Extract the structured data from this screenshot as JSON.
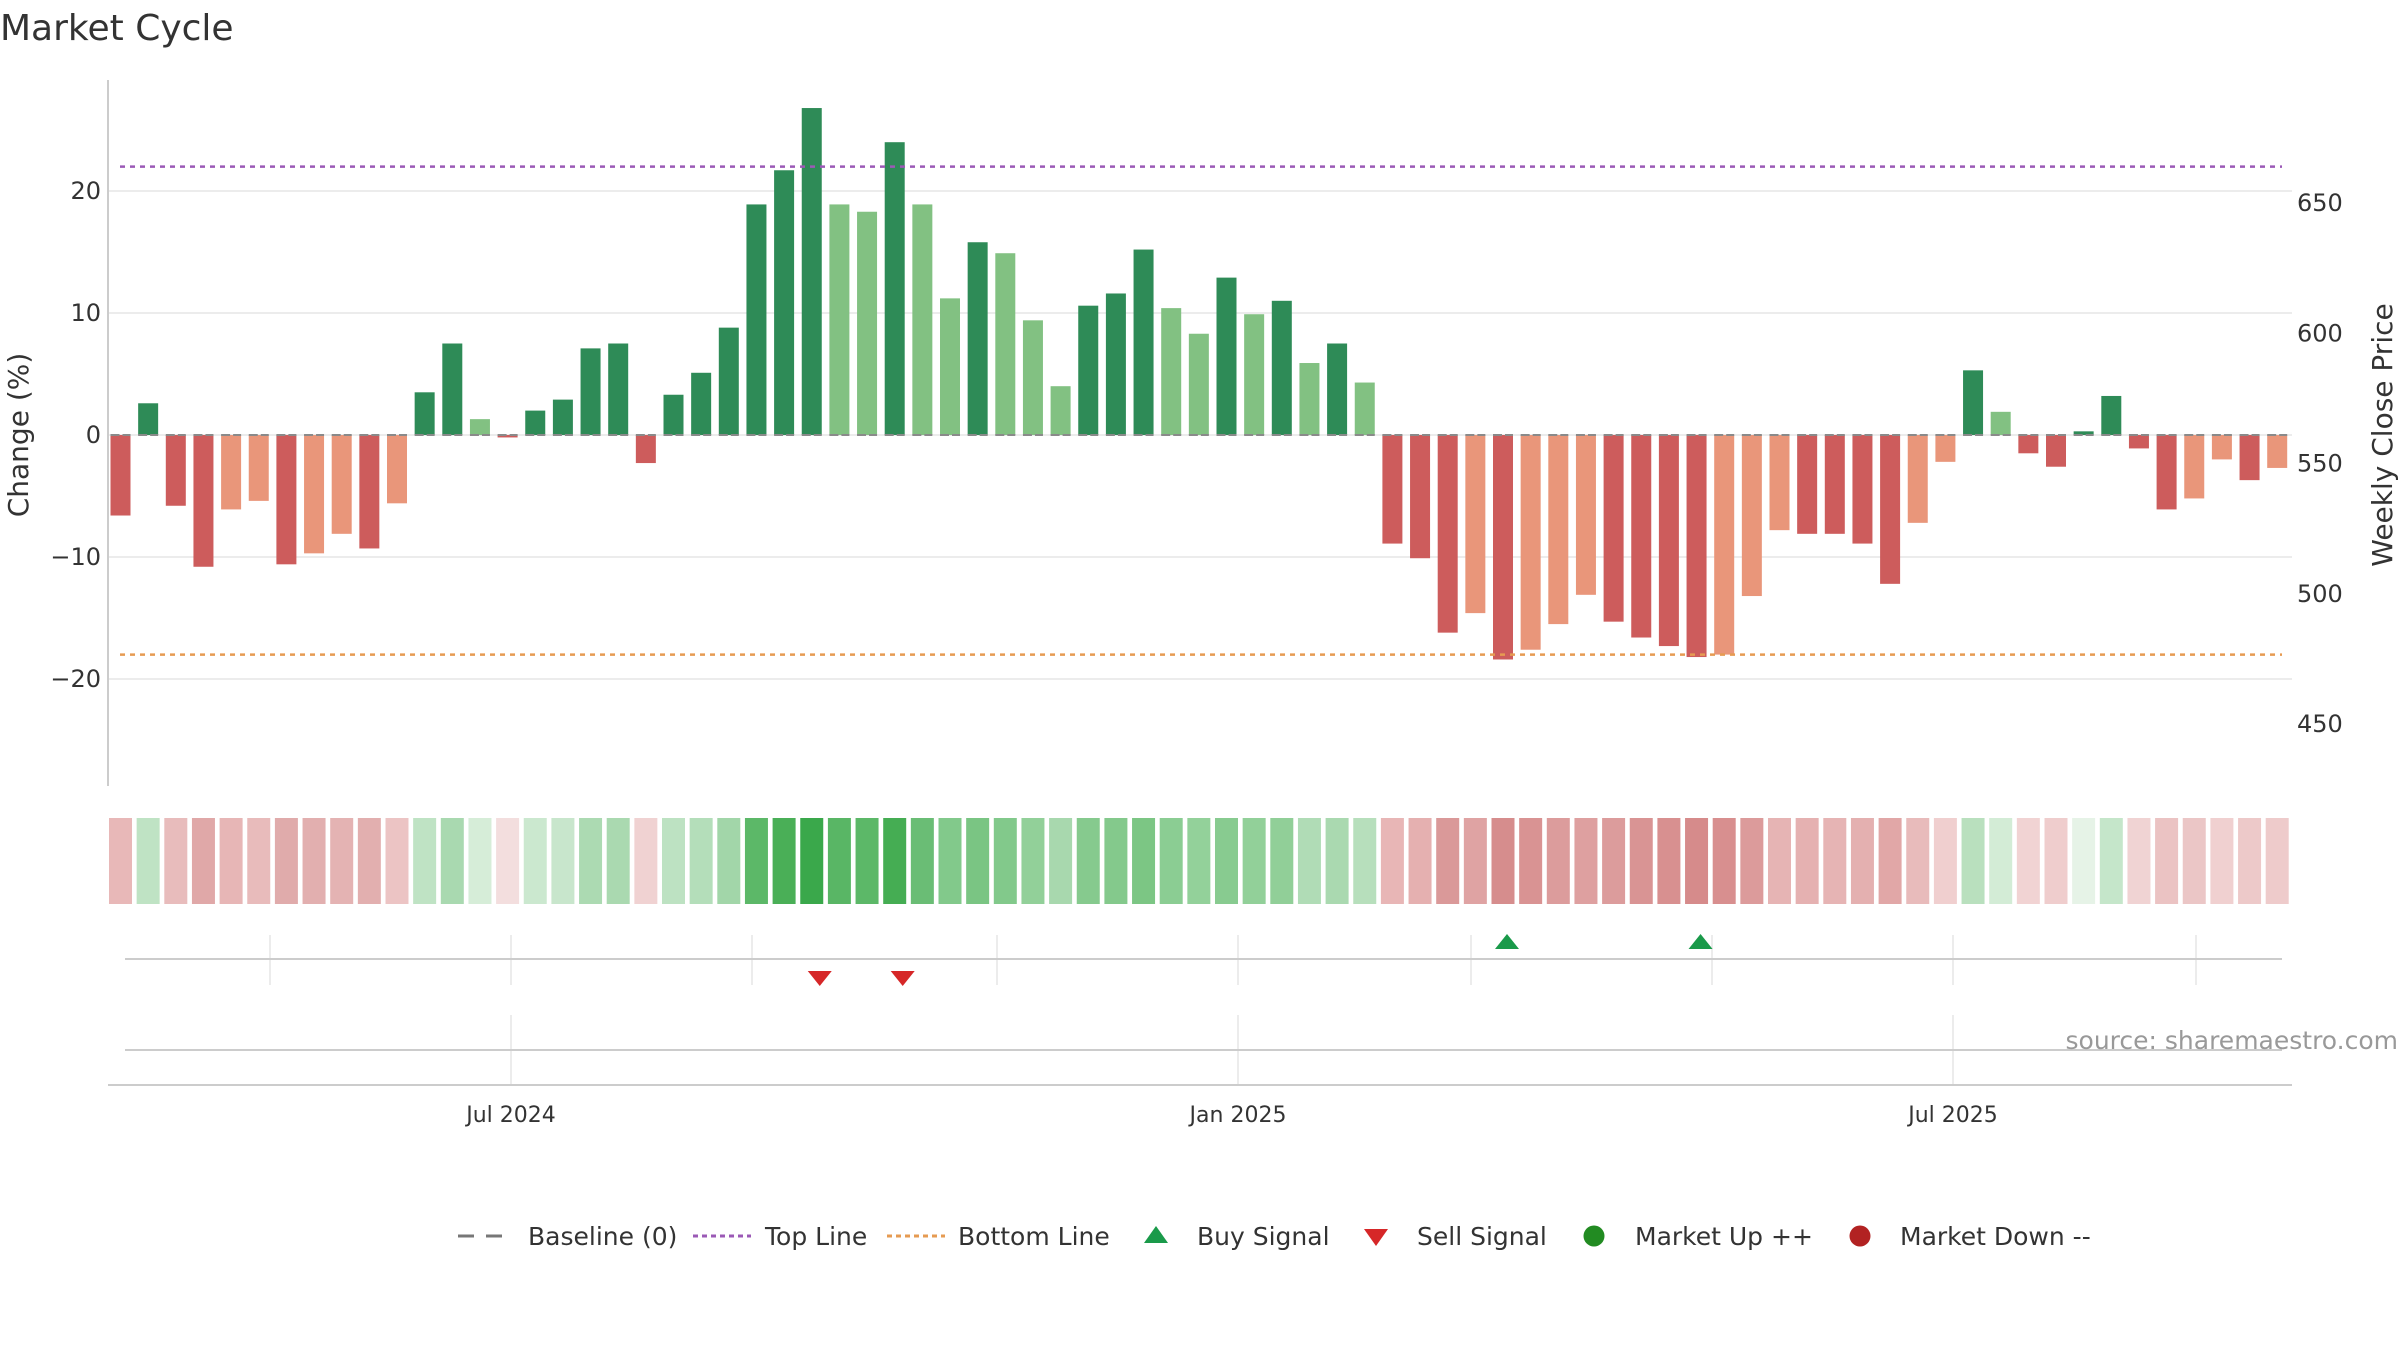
{
  "chart_data": {
    "type": "bar",
    "title": "Market Cycle",
    "y_left_label": "Change (%)",
    "y_right_label": "Weekly Close Price",
    "y_left_ticks": [
      20,
      10,
      0,
      -10,
      -20
    ],
    "y_left_tick_labels": [
      "20",
      "10",
      "0",
      "−10",
      "−20"
    ],
    "y_right_ticks": [
      650,
      600,
      550,
      500,
      450
    ],
    "y_right_tick_labels": [
      "650",
      "600",
      "550",
      "500",
      "450"
    ],
    "ylim_left": [
      -29,
      29
    ],
    "top_line": 22,
    "bottom_line": -18,
    "x_tick_labels": [
      "Jul 2024",
      "Jan 2025",
      "Jul 2025"
    ],
    "values": [
      -6.6,
      2.6,
      -5.8,
      -10.8,
      -6.1,
      -5.4,
      -10.6,
      -9.7,
      -8.1,
      -9.3,
      -5.6,
      3.5,
      7.5,
      1.3,
      -0.2,
      2.0,
      2.9,
      7.1,
      7.5,
      -2.3,
      3.3,
      5.1,
      8.8,
      18.9,
      21.7,
      26.8,
      18.9,
      18.3,
      24.0,
      18.9,
      11.2,
      15.8,
      14.9,
      9.4,
      4.0,
      10.6,
      11.6,
      15.2,
      10.4,
      8.3,
      12.9,
      9.9,
      11.0,
      5.9,
      7.5,
      4.3,
      -8.9,
      -10.1,
      -16.2,
      -14.6,
      -18.4,
      -17.6,
      -15.5,
      -13.1,
      -15.3,
      -16.6,
      -17.3,
      -18.2,
      -18.0,
      -13.2,
      -7.8,
      -8.1,
      -8.1,
      -8.9,
      -12.2,
      -7.2,
      -2.2,
      5.3,
      1.9,
      -1.5,
      -2.6,
      0.3,
      3.2,
      -1.1,
      -6.1,
      -5.2,
      -2.0,
      -3.7,
      -2.7
    ],
    "strip_colors": [
      "#e8b8b8",
      "#bfe3c4",
      "#e8bcbc",
      "#e0a8a8",
      "#e7b6b6",
      "#e8bbbb",
      "#e0abab",
      "#e2afaf",
      "#e4b3b3",
      "#e2afaf",
      "#ecc4c4",
      "#bfe3c4",
      "#a9d9b0",
      "#d6edd8",
      "#f3dede",
      "#cbe8cf",
      "#c8e6cc",
      "#acdab2",
      "#aad9b0",
      "#f0d2d2",
      "#bde2c2",
      "#b4deba",
      "#a2d6a9",
      "#5cb868",
      "#4aaf57",
      "#3aa84b",
      "#59b665",
      "#5cb868",
      "#45ad53",
      "#6abd75",
      "#82c98b",
      "#7ac583",
      "#82c98b",
      "#92d099",
      "#a8d8ae",
      "#86ca8e",
      "#84c98c",
      "#7cc684",
      "#8bcd93",
      "#93d19a",
      "#88cb90",
      "#92d099",
      "#91cf98",
      "#b0dcb6",
      "#aad9b0",
      "#b7dfbc",
      "#e8b6b6",
      "#e5b0b0",
      "#da9999",
      "#dfa3a3",
      "#d68d8d",
      "#d99393",
      "#dc9c9c",
      "#dea0a0",
      "#dc9c9c",
      "#d99494",
      "#d89090",
      "#d68b8b",
      "#d88f8f",
      "#dc9b9b",
      "#e6b4b4",
      "#e5b1b1",
      "#e6b4b4",
      "#e4b0b0",
      "#e1a7a7",
      "#e8bbbb",
      "#f0cfcf",
      "#b9e0be",
      "#d3ecd6",
      "#f1d3d3",
      "#efcdcd",
      "#e6f3e7",
      "#c5e6ca",
      "#f0d3d3",
      "#ebc3c3",
      "#ebc6c6",
      "#f0d0d0",
      "#edc9c9",
      "#eecbcb"
    ],
    "sell_signal_indices": [
      25,
      28
    ],
    "buy_signal_indices": [
      50,
      57
    ],
    "colors": {
      "up_strong": "#2e8b57",
      "up_weak": "#82c182",
      "down_strong": "#cd5c5c",
      "down_weak": "#e9967a",
      "top_line": "#9b59b6",
      "bottom_line": "#e69b52",
      "buy": "#1a9a4a",
      "sell": "#d62728",
      "market_up": "#228b22",
      "market_down": "#b22222"
    },
    "legend": [
      "Baseline (0)",
      "Top Line",
      "Bottom Line",
      "Buy Signal",
      "Sell Signal",
      "Market Up ++",
      "Market Down --"
    ],
    "source": "source: sharemaestro.com"
  }
}
